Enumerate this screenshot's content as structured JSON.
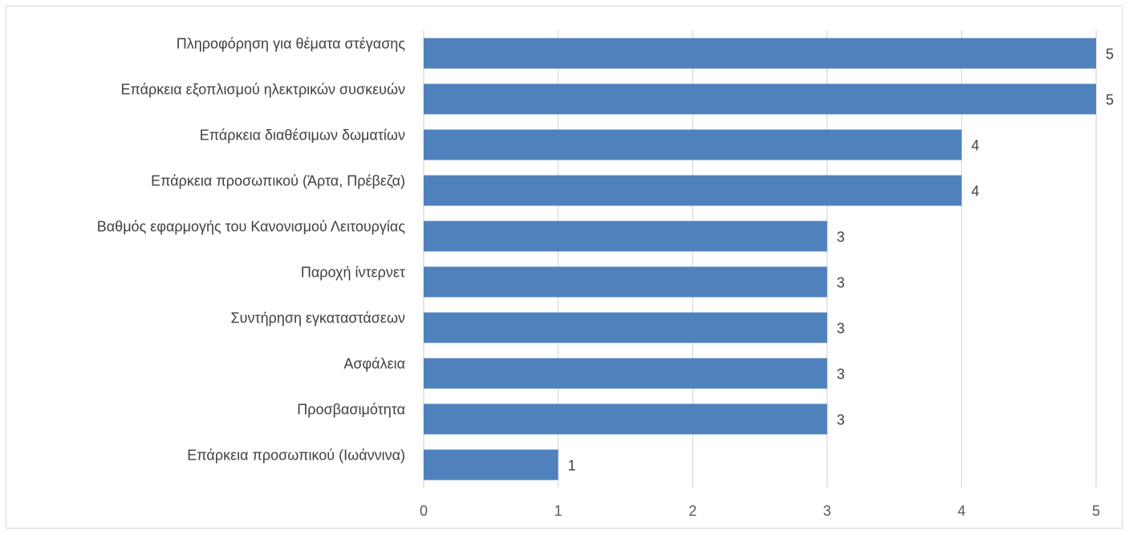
{
  "chart_data": {
    "type": "bar",
    "orientation": "horizontal",
    "categories": [
      "Πληροφόρηση για θέματα στέγασης",
      "Επάρκεια  εξοπλισμού ηλεκτρικών συσκευών",
      "Επάρκεια διαθέσιμων δωματίων",
      "Επάρκεια προσωπικού (Άρτα, Πρέβεζα)",
      "Βαθμός εφαρμογής του Κανονισμού Λειτουργίας",
      "Παροχή ίντερνετ",
      "Συντήρηση εγκαταστάσεων",
      "Ασφάλεια",
      "Προσβασιμότητα",
      "Επάρκεια προσωπικού (Ιωάννινα)"
    ],
    "values": [
      5,
      5,
      4,
      4,
      3,
      3,
      3,
      3,
      3,
      1
    ],
    "data_labels": [
      "5",
      "5",
      "4",
      "4",
      "3",
      "3",
      "3",
      "3",
      "3",
      "1"
    ],
    "xlim": [
      0,
      5
    ],
    "x_ticks": [
      "0",
      "1",
      "2",
      "3",
      "4",
      "5"
    ],
    "title": "",
    "xlabel": "",
    "ylabel": "",
    "grid": "vertical",
    "legend": "none",
    "colors": {
      "bar": "#4f81bd",
      "grid": "#d9d9d9",
      "axis_text": "#595959",
      "label_text": "#404040",
      "border": "#d9d9d9"
    }
  }
}
